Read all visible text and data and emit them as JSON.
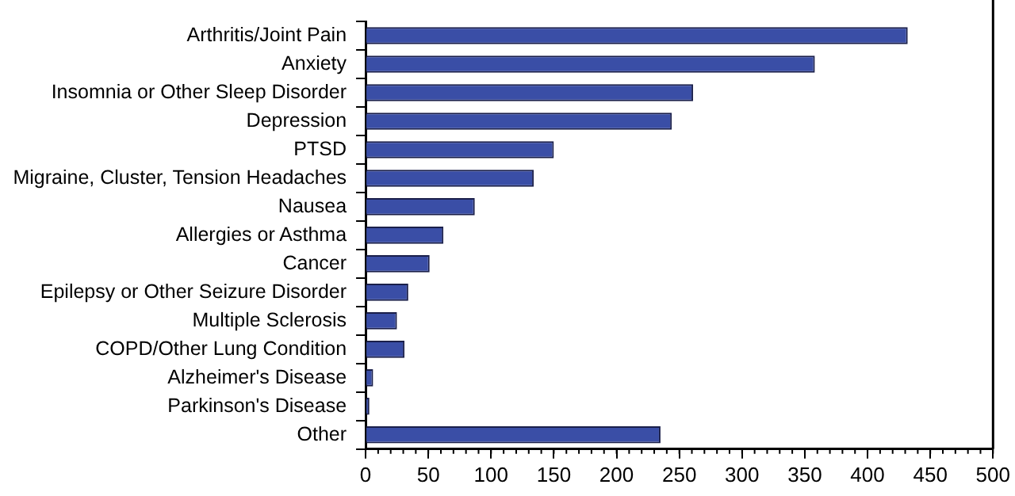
{
  "chart_data": {
    "type": "bar",
    "orientation": "horizontal",
    "categories": [
      "Arthritis/Joint Pain",
      "Anxiety",
      "Insomnia or Other Sleep Disorder",
      "Depression",
      "PTSD",
      "Migraine, Cluster, Tension Headaches",
      "Nausea",
      "Allergies or Asthma",
      "Cancer",
      "Epilepsy or Other Seizure Disorder",
      "Multiple Sclerosis",
      "COPD/Other Lung Condition",
      "Alzheimer's Disease",
      "Parkinson's Disease",
      "Other"
    ],
    "values": [
      432,
      358,
      261,
      244,
      150,
      134,
      87,
      62,
      51,
      34,
      25,
      31,
      6,
      3,
      235
    ],
    "color": "#3a4ea6",
    "xlim": [
      0,
      500
    ],
    "xticks": [
      0,
      50,
      100,
      150,
      200,
      250,
      300,
      350,
      400,
      450,
      500
    ],
    "grid": false,
    "legend": false
  }
}
